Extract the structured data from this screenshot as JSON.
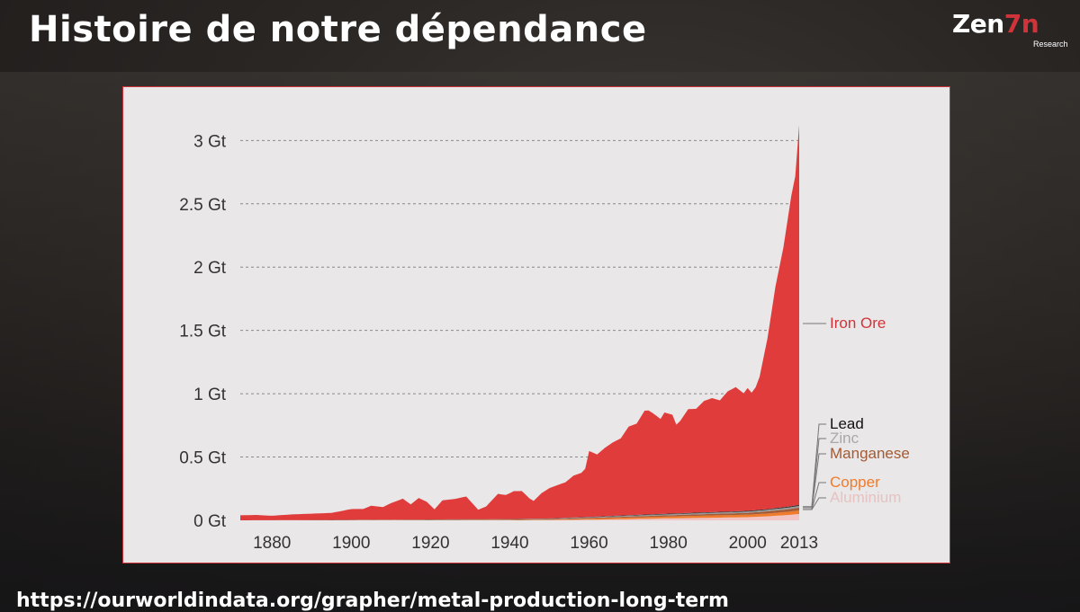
{
  "slide": {
    "title": "Histoire de notre dépendance",
    "logo_text": "Zen",
    "logo_mark_text": "7n",
    "logo_subtitle": "Research",
    "source_url": "https://ourworldindata.org/grapher/metal-production-long-term"
  },
  "chart_data": {
    "type": "area",
    "stacked": true,
    "x_unit": "year",
    "y_unit": "Gt",
    "xlim": [
      1872,
      2013
    ],
    "ylim": [
      0,
      3.35
    ],
    "x_ticks": [
      1880,
      1900,
      1920,
      1940,
      1960,
      1980,
      2000,
      2013
    ],
    "x_tick_labels": [
      "1880",
      "1900",
      "1920",
      "1940",
      "1960",
      "1980",
      "2000",
      "2013"
    ],
    "y_ticks": [
      0,
      0.5,
      1,
      1.5,
      2,
      2.5,
      3
    ],
    "y_tick_labels": [
      "0 Gt",
      "0.5 Gt",
      "1 Gt",
      "1.5 Gt",
      "2 Gt",
      "2.5 Gt",
      "3 Gt"
    ],
    "grid": "horizontal dashed",
    "legend": "labels at right end of series",
    "series": [
      {
        "name": "Aluminium",
        "color": "#f3c4c4",
        "points": [
          [
            1872,
            0
          ],
          [
            1940,
            0
          ],
          [
            1950,
            0.002
          ],
          [
            1960,
            0.005
          ],
          [
            1970,
            0.01
          ],
          [
            1980,
            0.016
          ],
          [
            1990,
            0.02
          ],
          [
            2000,
            0.025
          ],
          [
            2005,
            0.032
          ],
          [
            2010,
            0.042
          ],
          [
            2013,
            0.05
          ]
        ]
      },
      {
        "name": "Copper",
        "color": "#f07b2b",
        "points": [
          [
            1872,
            0
          ],
          [
            1900,
            0.001
          ],
          [
            1920,
            0.002
          ],
          [
            1940,
            0.003
          ],
          [
            1950,
            0.004
          ],
          [
            1960,
            0.008
          ],
          [
            1970,
            0.012
          ],
          [
            1980,
            0.014
          ],
          [
            1990,
            0.018
          ],
          [
            2000,
            0.02
          ],
          [
            2005,
            0.022
          ],
          [
            2010,
            0.025
          ],
          [
            2013,
            0.028
          ]
        ]
      },
      {
        "name": "Manganese",
        "color": "#a35a35",
        "points": [
          [
            1872,
            0
          ],
          [
            1900,
            0.001
          ],
          [
            1920,
            0.002
          ],
          [
            1940,
            0.003
          ],
          [
            1950,
            0.004
          ],
          [
            1960,
            0.006
          ],
          [
            1970,
            0.008
          ],
          [
            1980,
            0.01
          ],
          [
            1990,
            0.012
          ],
          [
            2000,
            0.014
          ],
          [
            2005,
            0.017
          ],
          [
            2010,
            0.02
          ],
          [
            2013,
            0.022
          ]
        ]
      },
      {
        "name": "Zinc",
        "color": "#9a9a9a",
        "points": [
          [
            1872,
            0
          ],
          [
            1900,
            0.001
          ],
          [
            1920,
            0.002
          ],
          [
            1940,
            0.002
          ],
          [
            1950,
            0.003
          ],
          [
            1960,
            0.005
          ],
          [
            1970,
            0.007
          ],
          [
            1980,
            0.008
          ],
          [
            1990,
            0.009
          ],
          [
            2000,
            0.01
          ],
          [
            2005,
            0.012
          ],
          [
            2010,
            0.013
          ],
          [
            2013,
            0.014
          ]
        ]
      },
      {
        "name": "Lead",
        "color": "#2d2d2d",
        "points": [
          [
            1872,
            0
          ],
          [
            1900,
            0.001
          ],
          [
            1920,
            0.001
          ],
          [
            1940,
            0.002
          ],
          [
            1950,
            0.002
          ],
          [
            1960,
            0.003
          ],
          [
            1970,
            0.004
          ],
          [
            1980,
            0.005
          ],
          [
            1990,
            0.005
          ],
          [
            2000,
            0.006
          ],
          [
            2005,
            0.006
          ],
          [
            2010,
            0.007
          ],
          [
            2013,
            0.008
          ]
        ]
      },
      {
        "name": "Iron Ore",
        "color": "#e03c3c",
        "points": [
          [
            1872,
            0.04
          ],
          [
            1876,
            0.042
          ],
          [
            1880,
            0.035
          ],
          [
            1885,
            0.045
          ],
          [
            1890,
            0.05
          ],
          [
            1895,
            0.055
          ],
          [
            1900,
            0.085
          ],
          [
            1903,
            0.085
          ],
          [
            1905,
            0.11
          ],
          [
            1908,
            0.1
          ],
          [
            1910,
            0.13
          ],
          [
            1913,
            0.165
          ],
          [
            1915,
            0.12
          ],
          [
            1917,
            0.17
          ],
          [
            1919,
            0.14
          ],
          [
            1921,
            0.08
          ],
          [
            1923,
            0.15
          ],
          [
            1926,
            0.16
          ],
          [
            1929,
            0.18
          ],
          [
            1932,
            0.075
          ],
          [
            1934,
            0.1
          ],
          [
            1937,
            0.2
          ],
          [
            1939,
            0.19
          ],
          [
            1941,
            0.22
          ],
          [
            1943,
            0.22
          ],
          [
            1945,
            0.16
          ],
          [
            1946,
            0.14
          ],
          [
            1948,
            0.2
          ],
          [
            1950,
            0.24
          ],
          [
            1952,
            0.26
          ],
          [
            1954,
            0.28
          ],
          [
            1956,
            0.33
          ],
          [
            1958,
            0.35
          ],
          [
            1959,
            0.38
          ],
          [
            1960,
            0.52
          ],
          [
            1962,
            0.49
          ],
          [
            1964,
            0.54
          ],
          [
            1966,
            0.58
          ],
          [
            1968,
            0.61
          ],
          [
            1970,
            0.7
          ],
          [
            1972,
            0.72
          ],
          [
            1974,
            0.82
          ],
          [
            1975,
            0.82
          ],
          [
            1976,
            0.8
          ],
          [
            1978,
            0.75
          ],
          [
            1979,
            0.8
          ],
          [
            1981,
            0.78
          ],
          [
            1982,
            0.7
          ],
          [
            1983,
            0.73
          ],
          [
            1985,
            0.82
          ],
          [
            1987,
            0.82
          ],
          [
            1989,
            0.88
          ],
          [
            1991,
            0.9
          ],
          [
            1993,
            0.88
          ],
          [
            1995,
            0.95
          ],
          [
            1997,
            0.98
          ],
          [
            1999,
            0.93
          ],
          [
            2000,
            0.97
          ],
          [
            2001,
            0.93
          ],
          [
            2002,
            0.97
          ],
          [
            2003,
            1.05
          ],
          [
            2004,
            1.2
          ],
          [
            2005,
            1.35
          ],
          [
            2006,
            1.55
          ],
          [
            2007,
            1.75
          ],
          [
            2008,
            1.9
          ],
          [
            2009,
            2.05
          ],
          [
            2010,
            2.25
          ],
          [
            2011,
            2.45
          ],
          [
            2012,
            2.6
          ],
          [
            2013,
            3.0
          ]
        ]
      }
    ]
  }
}
